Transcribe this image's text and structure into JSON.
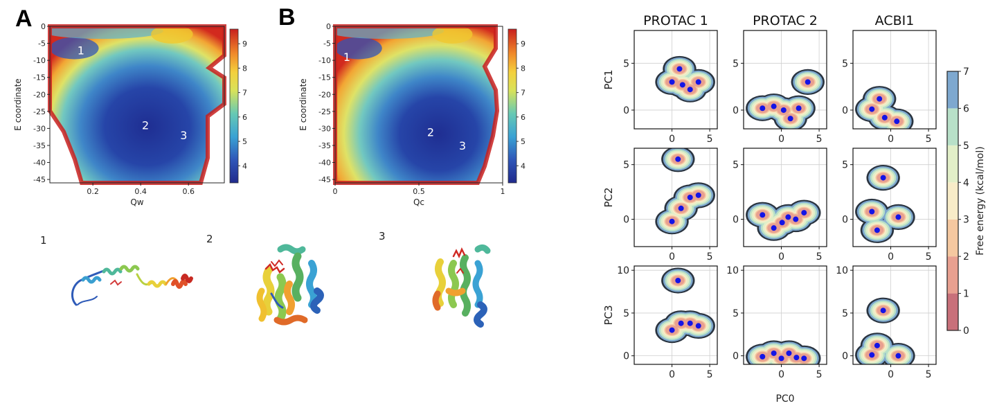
{
  "figure": {
    "panel_labels": [
      "A",
      "B"
    ],
    "structure_labels": [
      "1",
      "2",
      "3"
    ]
  },
  "chart_data": [
    {
      "type": "heatmap",
      "panel": "A",
      "xlabel": "Qw",
      "ylabel": "E coordinate",
      "xlim": [
        0.02,
        0.75
      ],
      "ylim": [
        -46,
        0
      ],
      "xticks": [
        0.2,
        0.4,
        0.6
      ],
      "xtick_labels": [
        "0.2",
        "0.4",
        "0.6"
      ],
      "yticks": [
        0,
        -5,
        -10,
        -15,
        -20,
        -25,
        -30,
        -35,
        -40,
        -45
      ],
      "ytick_labels": [
        "0",
        "-5",
        "-10",
        "-15",
        "-20",
        "-25",
        "-30",
        "-35",
        "-40",
        "-45"
      ],
      "colorbar": {
        "range": [
          3.3,
          9.6
        ],
        "ticks": [
          4,
          5,
          6,
          7,
          8,
          9
        ],
        "tick_labels": [
          "4",
          "5",
          "6",
          "7",
          "8",
          "9"
        ],
        "colormap": "jet"
      },
      "annotations": [
        {
          "text": "1",
          "x": 0.15,
          "y": -7
        },
        {
          "text": "2",
          "x": 0.42,
          "y": -29
        },
        {
          "text": "3",
          "x": 0.58,
          "y": -32
        }
      ]
    },
    {
      "type": "heatmap",
      "panel": "B",
      "xlabel": "Qc",
      "ylabel": "E coordinate",
      "xlim": [
        0,
        1
      ],
      "ylim": [
        -46,
        0
      ],
      "xticks": [
        0,
        0.5,
        1
      ],
      "xtick_labels": [
        "0",
        "0.5",
        "1"
      ],
      "yticks": [
        0,
        -5,
        -10,
        -15,
        -20,
        -25,
        -30,
        -35,
        -40,
        -45
      ],
      "ytick_labels": [
        "0",
        "-5",
        "-10",
        "-15",
        "-20",
        "-25",
        "-30",
        "-35",
        "-40",
        "-45"
      ],
      "colorbar": {
        "range": [
          3.3,
          9.6
        ],
        "ticks": [
          4,
          5,
          6,
          7,
          8,
          9
        ],
        "tick_labels": [
          "4",
          "5",
          "6",
          "7",
          "8",
          "9"
        ],
        "colormap": "jet"
      },
      "annotations": [
        {
          "text": "1",
          "x": 0.07,
          "y": -9
        },
        {
          "text": "2",
          "x": 0.57,
          "y": -31
        },
        {
          "text": "3",
          "x": 0.76,
          "y": -35
        }
      ]
    },
    {
      "type": "heatmap",
      "panel": "C",
      "grid": true,
      "column_titles": [
        "PROTAC 1",
        "PROTAC 2",
        "ACBI1"
      ],
      "row_ylabels": [
        "PC1",
        "PC2",
        "PC3"
      ],
      "xlabel": "PC0",
      "xlim": [
        -5,
        6
      ],
      "xticks": [
        0,
        5
      ],
      "xtick_labels": [
        "0",
        "5"
      ],
      "rows": [
        {
          "ylim": [
            -2,
            8.5
          ],
          "yticks": [
            0,
            5
          ],
          "ytick_labels": [
            "0",
            "5"
          ]
        },
        {
          "ylim": [
            -2.5,
            6.5
          ],
          "yticks": [
            0,
            5
          ],
          "ytick_labels": [
            "0",
            "5"
          ]
        },
        {
          "ylim": [
            -1,
            10.5
          ],
          "yticks": [
            0,
            5,
            10
          ],
          "ytick_labels": [
            "0",
            "5",
            "10"
          ]
        }
      ],
      "colorbar": {
        "label": "Free energy (kcal/mol)",
        "range": [
          0,
          7
        ],
        "ticks": [
          0,
          1,
          2,
          3,
          4,
          5,
          6,
          7
        ],
        "tick_labels": [
          "0",
          "1",
          "2",
          "3",
          "4",
          "5",
          "6",
          "7"
        ],
        "colors": [
          "#c8707a",
          "#e8a090",
          "#f5c8a0",
          "#f8ecc8",
          "#e2efc8",
          "#b8e0c8",
          "#7ea8cf"
        ]
      },
      "cells": [
        {
          "row": 0,
          "col": 0,
          "minima": [
            [
              1,
              4.4
            ],
            [
              0,
              3
            ],
            [
              1.4,
              2.7
            ],
            [
              2.4,
              2.2
            ],
            [
              3.5,
              3
            ]
          ]
        },
        {
          "row": 0,
          "col": 1,
          "minima": [
            [
              -2.5,
              0.2
            ],
            [
              -1,
              0.4
            ],
            [
              0.3,
              0
            ],
            [
              1.2,
              -0.9
            ],
            [
              2.3,
              0.2
            ],
            [
              3.5,
              3
            ]
          ]
        },
        {
          "row": 0,
          "col": 2,
          "minima": [
            [
              -2.5,
              0.1
            ],
            [
              -1.5,
              1.2
            ],
            [
              -0.8,
              -0.8
            ],
            [
              0.8,
              -1.2
            ]
          ]
        },
        {
          "row": 1,
          "col": 0,
          "minima": [
            [
              0.8,
              5.5
            ],
            [
              0,
              -0.2
            ],
            [
              1.2,
              1
            ],
            [
              2.4,
              2
            ],
            [
              3.5,
              2.2
            ]
          ]
        },
        {
          "row": 1,
          "col": 1,
          "minima": [
            [
              -2.5,
              0.4
            ],
            [
              -1,
              -0.8
            ],
            [
              0.1,
              -0.3
            ],
            [
              0.9,
              0.2
            ],
            [
              1.9,
              0
            ],
            [
              3,
              0.6
            ]
          ]
        },
        {
          "row": 1,
          "col": 2,
          "minima": [
            [
              -1,
              3.8
            ],
            [
              -2.5,
              0.7
            ],
            [
              -1.8,
              -1
            ],
            [
              1,
              0.2
            ]
          ]
        },
        {
          "row": 2,
          "col": 0,
          "minima": [
            [
              0.8,
              8.8
            ],
            [
              0,
              3
            ],
            [
              1.2,
              3.8
            ],
            [
              2.4,
              3.8
            ],
            [
              3.5,
              3.5
            ]
          ]
        },
        {
          "row": 2,
          "col": 1,
          "minima": [
            [
              -2.5,
              -0.1
            ],
            [
              -1,
              0.3
            ],
            [
              0,
              -0.3
            ],
            [
              1,
              0.3
            ],
            [
              2,
              -0.2
            ],
            [
              3,
              -0.3
            ]
          ]
        },
        {
          "row": 2,
          "col": 2,
          "minima": [
            [
              -1,
              5.3
            ],
            [
              -2.5,
              0.1
            ],
            [
              -1.8,
              1.2
            ],
            [
              1,
              0
            ]
          ]
        }
      ]
    }
  ]
}
